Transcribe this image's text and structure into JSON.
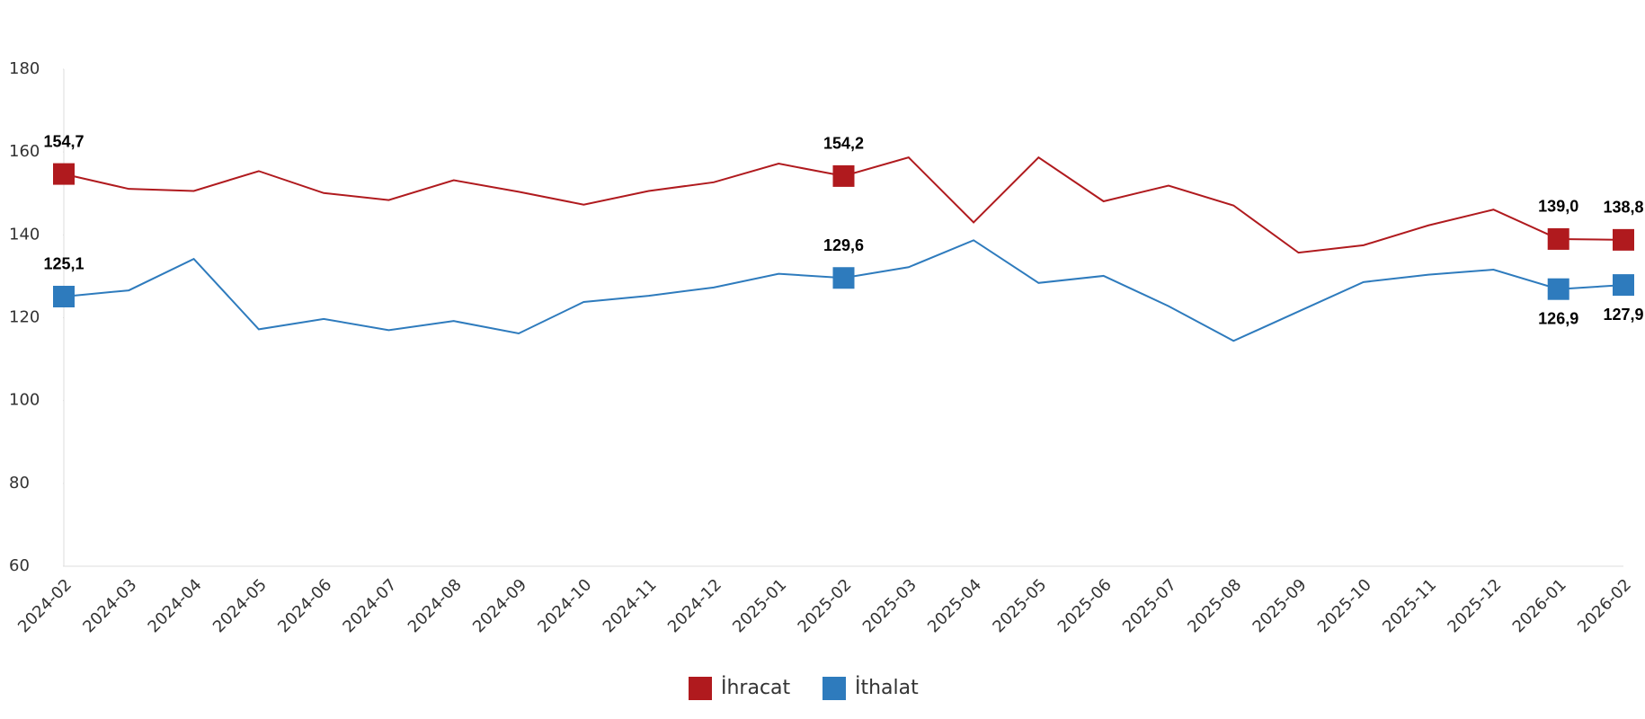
{
  "chart_data": {
    "type": "line",
    "x": [
      "2024-02",
      "2024-03",
      "2024-04",
      "2024-05",
      "2024-06",
      "2024-07",
      "2024-08",
      "2024-09",
      "2024-10",
      "2024-11",
      "2024-12",
      "2025-01",
      "2025-02",
      "2025-03",
      "2025-04",
      "2025-05",
      "2025-06",
      "2025-07",
      "2025-08",
      "2025-09",
      "2025-10",
      "2025-11",
      "2025-12",
      "2026-01",
      "2026-02"
    ],
    "series": [
      {
        "name": "İhracat",
        "color": "#b01a1e",
        "values": [
          154.7,
          151.1,
          150.6,
          155.4,
          150.1,
          148.4,
          153.2,
          150.4,
          147.3,
          150.6,
          152.7,
          157.2,
          154.2,
          158.7,
          143.0,
          158.7,
          148.1,
          151.9,
          147.1,
          135.7,
          137.5,
          142.3,
          146.1,
          139.0,
          138.8
        ],
        "value_labels": [
          "154,7",
          null,
          null,
          null,
          null,
          null,
          null,
          null,
          null,
          null,
          null,
          null,
          "154,2",
          null,
          null,
          null,
          null,
          null,
          null,
          null,
          null,
          null,
          null,
          "139,0",
          "138,8"
        ]
      },
      {
        "name": "İthalat",
        "color": "#2e7bbd",
        "values": [
          125.1,
          126.6,
          134.2,
          117.2,
          119.7,
          117.0,
          119.2,
          116.2,
          123.8,
          125.3,
          127.3,
          130.6,
          129.6,
          132.2,
          138.7,
          128.4,
          130.1,
          122.8,
          114.4,
          121.5,
          128.6,
          130.4,
          131.6,
          126.9,
          127.9
        ],
        "value_labels": [
          "125,1",
          null,
          null,
          null,
          null,
          null,
          null,
          null,
          null,
          null,
          null,
          null,
          "129,6",
          null,
          null,
          null,
          null,
          null,
          null,
          null,
          null,
          null,
          null,
          "126,9",
          "127,9"
        ]
      }
    ],
    "ylim": [
      60,
      180
    ],
    "yticks": [
      60,
      80,
      100,
      120,
      140,
      160,
      180
    ],
    "grid": false,
    "legend": "bottom"
  }
}
